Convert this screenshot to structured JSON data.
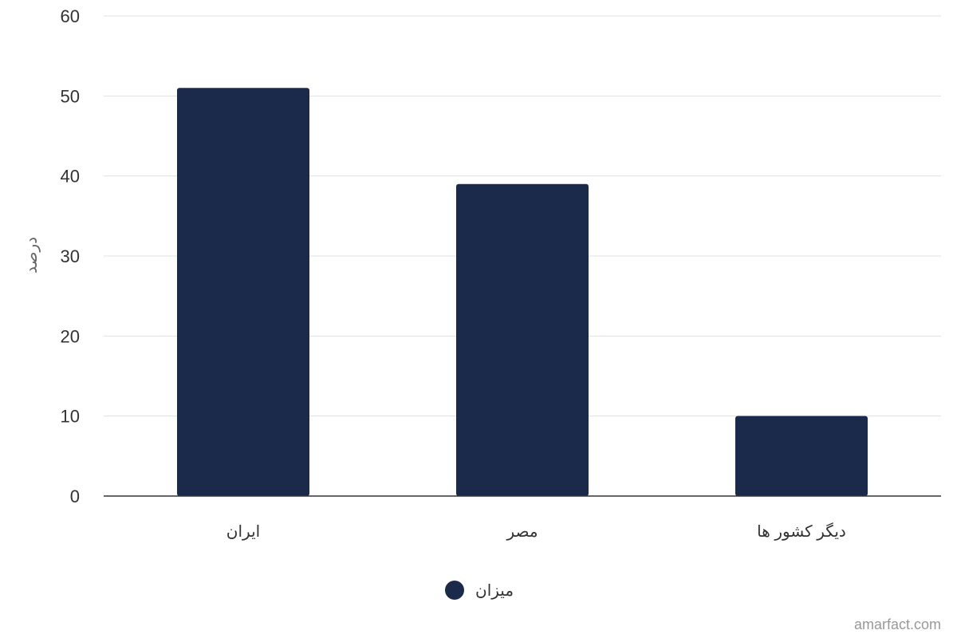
{
  "chart_data": {
    "type": "bar",
    "categories": [
      "ایران",
      "مصر",
      "دیگر کشور ها"
    ],
    "series": [
      {
        "name": "میزان",
        "values": [
          51,
          39,
          10
        ]
      }
    ],
    "ylabel": "درصد",
    "xlabel": "",
    "ylim": [
      0,
      60
    ],
    "yticks": [
      0,
      10,
      20,
      30,
      40,
      50,
      60
    ],
    "grid": true,
    "legend_position": "bottom-center",
    "bar_color": "#1b2a4a"
  },
  "watermark": "amarfact.com"
}
